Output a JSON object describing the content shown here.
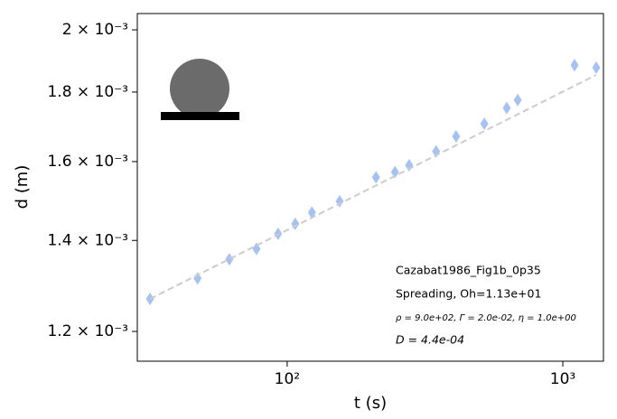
{
  "chart_data": {
    "type": "scatter",
    "xlabel": "t (s)",
    "ylabel": "d (m)",
    "xscale": "log",
    "yscale": "log",
    "xlim": [
      28.6,
      1404
    ],
    "ylim": [
      0.001141,
      0.002056
    ],
    "xticks": [
      {
        "value": 100,
        "label": "10²"
      },
      {
        "value": 1000,
        "label": "10³"
      }
    ],
    "yticks": [
      {
        "value": 0.0012,
        "label": "1.2 × 10⁻³"
      },
      {
        "value": 0.0014,
        "label": "1.4 × 10⁻³"
      },
      {
        "value": 0.0016,
        "label": "1.6 × 10⁻³"
      },
      {
        "value": 0.0018,
        "label": "1.8 × 10⁻³"
      },
      {
        "value": 0.002,
        "label": "2 × 10⁻³"
      }
    ],
    "series": [
      {
        "type": "scatter",
        "marker": "diamond",
        "color": "#a4c2f4",
        "x": [
          31.8,
          47.3,
          61.7,
          77.4,
          92.7,
          107,
          123,
          155,
          210,
          246,
          277,
          347,
          410,
          519,
          626,
          686,
          1103,
          1322
        ],
        "values": [
          0.001268,
          0.001313,
          0.001356,
          0.00138,
          0.001416,
          0.00144,
          0.001468,
          0.001496,
          0.001558,
          0.001572,
          0.00159,
          0.001628,
          0.00167,
          0.001706,
          0.001752,
          0.001776,
          0.001884,
          0.001876
        ]
      },
      {
        "type": "line",
        "style": "dashed",
        "color": "#cccccc",
        "x": [
          31.8,
          1322
        ],
        "values": [
          0.001268,
          0.001853
        ]
      }
    ],
    "annotations": [
      "Cazabat1986_Fig1b_0p35",
      "Spreading, Oh=1.13e+01",
      "ρ = 9.0e+02, Γ = 2.0e-02, η = 1.0e+00",
      "D = 4.4e-04"
    ]
  }
}
